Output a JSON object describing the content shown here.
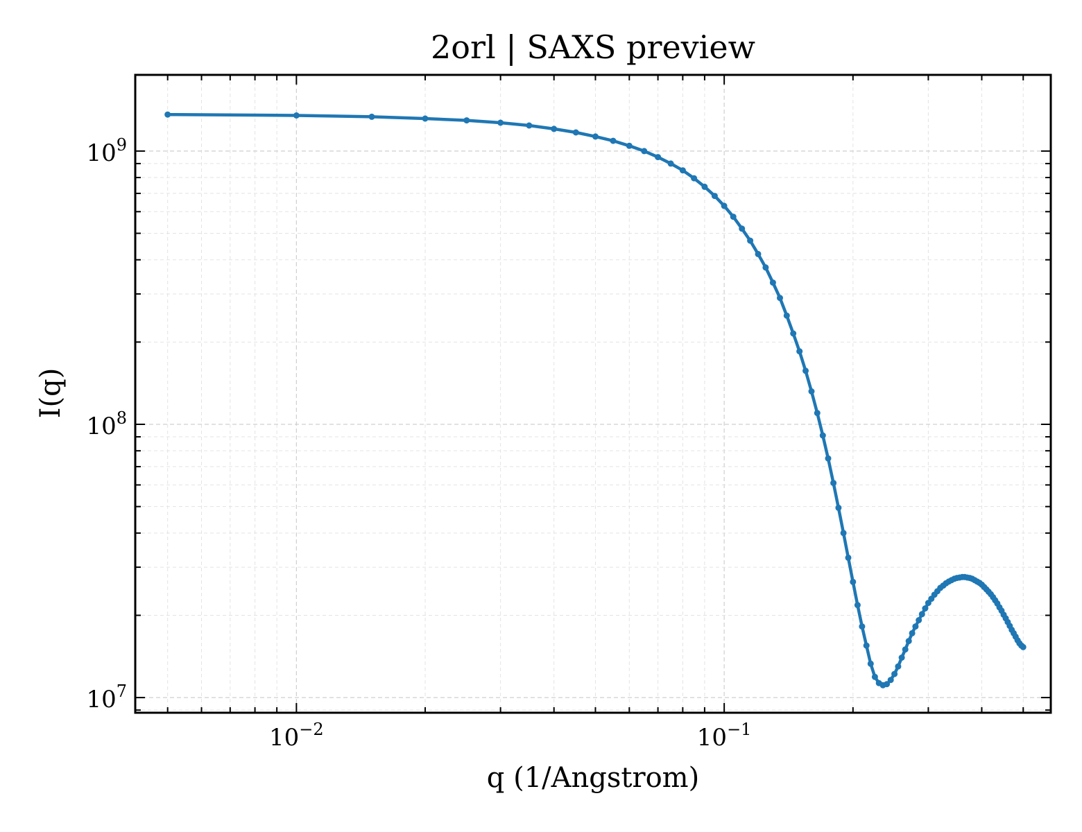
{
  "chart_data": {
    "type": "line",
    "title": "2orl | SAXS preview",
    "xlabel": "q (1/Angstrom)",
    "ylabel": "I(q)",
    "xscale": "log",
    "yscale": "log",
    "xlim": [
      0.0042,
      0.58
    ],
    "ylim": [
      8800000.0,
      1900000000.0
    ],
    "grid": true,
    "x_tick_labels": [
      {
        "value": 0.01,
        "base": "10",
        "exp": "−2"
      },
      {
        "value": 0.1,
        "base": "10",
        "exp": "−1"
      }
    ],
    "y_tick_labels": [
      {
        "value": 10000000.0,
        "base": "10",
        "exp": "7"
      },
      {
        "value": 100000000.0,
        "base": "10",
        "exp": "8"
      },
      {
        "value": 1000000000.0,
        "base": "10",
        "exp": "9"
      }
    ],
    "color": "#1f77b4",
    "series": [
      {
        "x": [
          0.005,
          0.01,
          0.015,
          0.02,
          0.025,
          0.03,
          0.035,
          0.04,
          0.045,
          0.05,
          0.055,
          0.06,
          0.065,
          0.07,
          0.075,
          0.08,
          0.085,
          0.09,
          0.095,
          0.1,
          0.105,
          0.11,
          0.115,
          0.12,
          0.125,
          0.13,
          0.135,
          0.14,
          0.145,
          0.15,
          0.155,
          0.16,
          0.165,
          0.17,
          0.175,
          0.18,
          0.185,
          0.19,
          0.195,
          0.2,
          0.205,
          0.21,
          0.215,
          0.22,
          0.225,
          0.23,
          0.235,
          0.24,
          0.245,
          0.25,
          0.255,
          0.26,
          0.265,
          0.27,
          0.275,
          0.28,
          0.285,
          0.29,
          0.295,
          0.3,
          0.305,
          0.31,
          0.315,
          0.32,
          0.325,
          0.33,
          0.335,
          0.34,
          0.345,
          0.35,
          0.355,
          0.36,
          0.365,
          0.37,
          0.375,
          0.38,
          0.385,
          0.39,
          0.395,
          0.4,
          0.405,
          0.41,
          0.415,
          0.42,
          0.425,
          0.43,
          0.435,
          0.44,
          0.445,
          0.45,
          0.455,
          0.46,
          0.465,
          0.47,
          0.475,
          0.48,
          0.485,
          0.49,
          0.495,
          0.5
        ],
        "y": [
          1360000000.0,
          1350000000.0,
          1335000000.0,
          1315000000.0,
          1295000000.0,
          1270000000.0,
          1240000000.0,
          1205000000.0,
          1170000000.0,
          1130000000.0,
          1090000000.0,
          1045000000.0,
          1000000000.0,
          950000000.0,
          900000000.0,
          850000000.0,
          795000000.0,
          740000000.0,
          685000000.0,
          630000000.0,
          575000000.0,
          520000000.0,
          470000000.0,
          420000000.0,
          375000000.0,
          330000000.0,
          290000000.0,
          250000000.0,
          215000000.0,
          185000000.0,
          157000000.0,
          132000000.0,
          110000000.0,
          91000000.0,
          75000000.0,
          61000000.0,
          49500000.0,
          40000000.0,
          32500000.0,
          26500000.0,
          21800000.0,
          18200000.0,
          15500000.0,
          13300000.0,
          11900000.0,
          11300000.0,
          11100000.0,
          11200000.0,
          11600000.0,
          12200000.0,
          13000000.0,
          14000000.0,
          15000000.0,
          16100000.0,
          17200000.0,
          18200000.0,
          19200000.0,
          20200000.0,
          21200000.0,
          22200000.0,
          23000000.0,
          23800000.0,
          24500000.0,
          25200000.0,
          25700000.0,
          26200000.0,
          26600000.0,
          26900000.0,
          27200000.0,
          27400000.0,
          27500000.0,
          27600000.0,
          27600000.0,
          27500000.0,
          27400000.0,
          27200000.0,
          26900000.0,
          26600000.0,
          26300000.0,
          25900000.0,
          25400000.0,
          24900000.0,
          24400000.0,
          23900000.0,
          23300000.0,
          22700000.0,
          22100000.0,
          21400000.0,
          20800000.0,
          20100000.0,
          19500000.0,
          18900000.0,
          18300000.0,
          17700000.0,
          17200000.0,
          16700000.0,
          16200000.0,
          15800000.0,
          15500000.0,
          15300000.0
        ]
      }
    ]
  }
}
